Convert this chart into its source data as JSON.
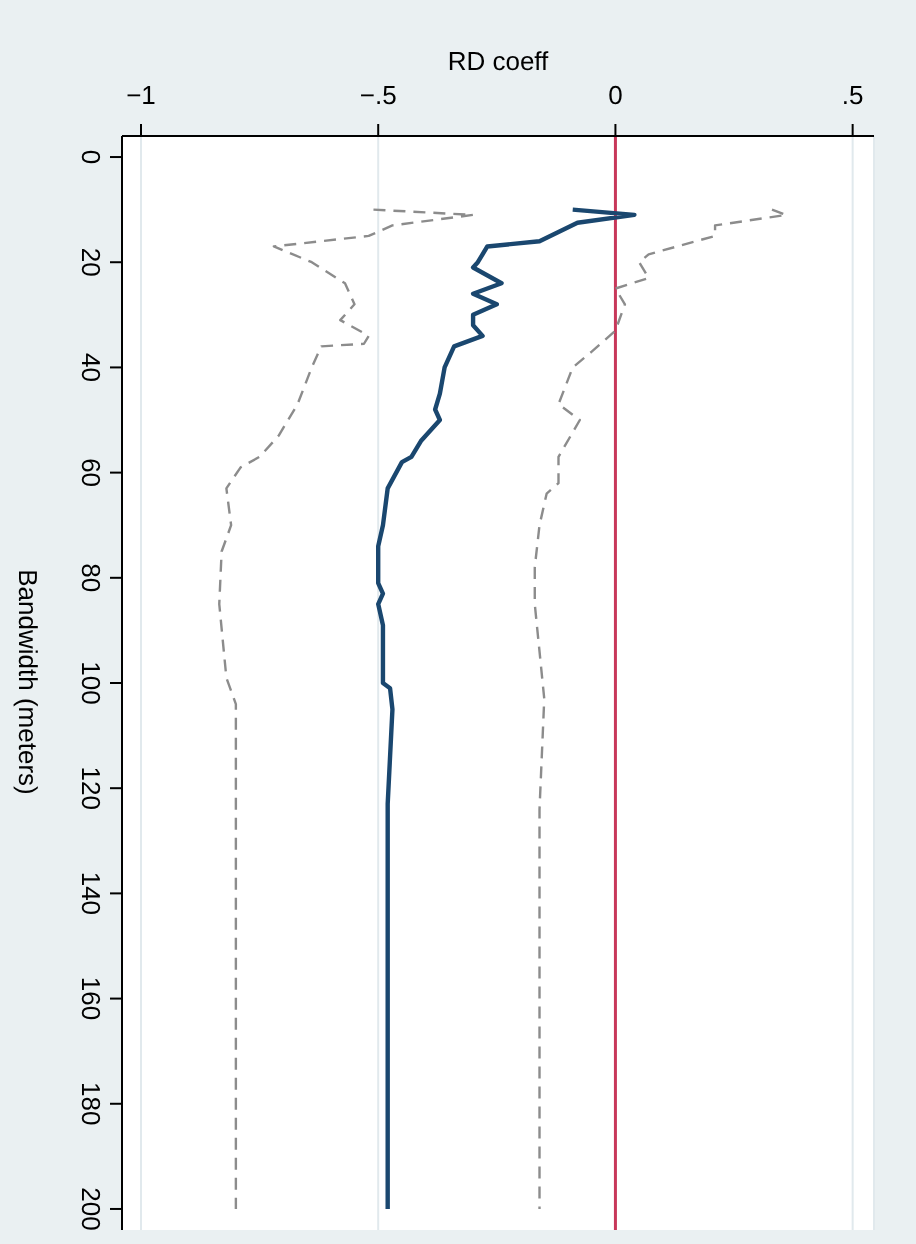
{
  "chart_data": {
    "type": "line",
    "orientation": "horizontal",
    "xlabel": "RD coeff",
    "ylabel": "Bandwidth (meters)",
    "xlim": [
      -1.04,
      0.545
    ],
    "xticks": [
      {
        "value": -1,
        "label": "−1"
      },
      {
        "value": -0.5,
        "label": "−.5"
      },
      0,
      {
        "value": 0.5,
        "label": ".5"
      }
    ],
    "ylim": [
      204,
      -4
    ],
    "yticks": [
      0,
      20,
      40,
      60,
      80,
      100,
      120,
      140,
      160,
      180,
      200
    ],
    "grid": "x",
    "ref_lines": [
      {
        "axis": "x",
        "value": 0,
        "color": "#c8385a"
      }
    ],
    "series": [
      {
        "color": "#1a476f",
        "line_style": "solid",
        "x": [
          10,
          11,
          12.5,
          16,
          17,
          20,
          21,
          24,
          26,
          28,
          30,
          32,
          34,
          36,
          40,
          45,
          48,
          50,
          54,
          57,
          58,
          63,
          70,
          74,
          81,
          83,
          85,
          89,
          94,
          100,
          101,
          105,
          123,
          200
        ],
        "values": [
          -0.09,
          0.04,
          -0.08,
          -0.16,
          -0.27,
          -0.29,
          -0.3,
          -0.24,
          -0.3,
          -0.25,
          -0.3,
          -0.3,
          -0.28,
          -0.34,
          -0.36,
          -0.37,
          -0.38,
          -0.37,
          -0.41,
          -0.43,
          -0.45,
          -0.48,
          -0.49,
          -0.5,
          -0.5,
          -0.49,
          -0.5,
          -0.49,
          -0.49,
          -0.49,
          -0.475,
          -0.47,
          -0.48,
          -0.48
        ]
      },
      {
        "color": "#8c8c8c",
        "line_style": "dashed",
        "x": [
          10,
          11,
          13,
          15,
          17,
          20,
          24,
          28,
          31,
          34,
          35.5,
          36,
          40,
          47,
          53,
          57,
          59,
          63,
          70,
          75,
          85,
          99,
          104,
          200
        ],
        "values": [
          -0.51,
          -0.3,
          -0.47,
          -0.52,
          -0.72,
          -0.64,
          -0.57,
          -0.55,
          -0.58,
          -0.52,
          -0.53,
          -0.62,
          -0.64,
          -0.67,
          -0.71,
          -0.75,
          -0.79,
          -0.82,
          -0.81,
          -0.83,
          -0.835,
          -0.82,
          -0.8,
          -0.8
        ]
      },
      {
        "color": "#8c8c8c",
        "line_style": "dashed",
        "x": [
          10,
          11,
          13,
          15,
          18.5,
          20,
          23,
          25,
          28,
          33,
          37,
          40,
          47,
          50,
          57,
          62,
          64,
          70,
          78,
          85,
          94,
          103,
          124,
          200
        ],
        "values": [
          0.33,
          0.36,
          0.21,
          0.21,
          0.07,
          0.05,
          0.07,
          0,
          0.02,
          0,
          -0.05,
          -0.09,
          -0.12,
          -0.075,
          -0.12,
          -0.12,
          -0.145,
          -0.16,
          -0.17,
          -0.17,
          -0.16,
          -0.15,
          -0.16,
          -0.16
        ]
      }
    ]
  }
}
